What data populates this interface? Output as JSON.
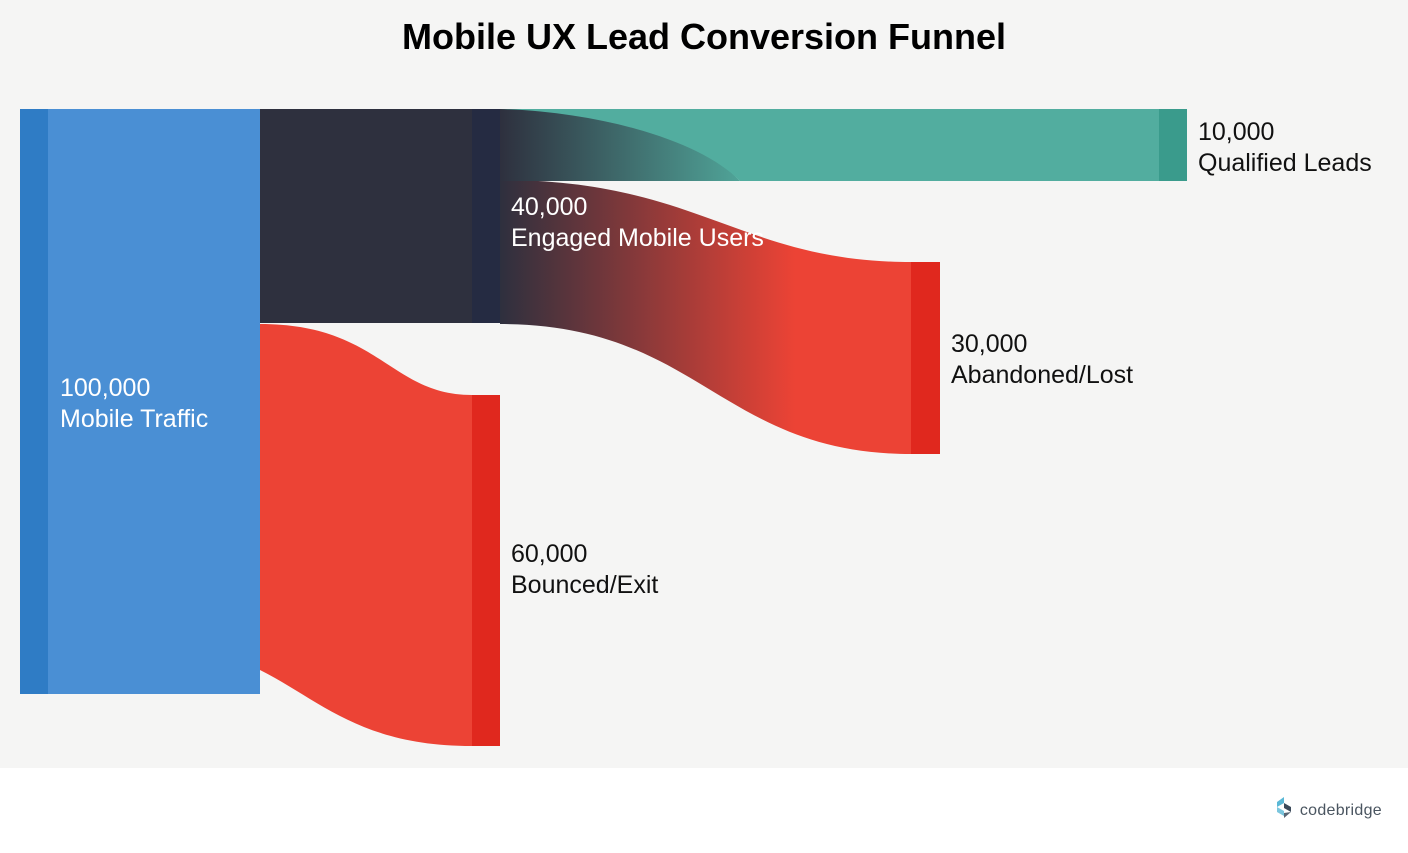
{
  "chart_data": {
    "type": "sankey",
    "title": "Mobile UX Lead Conversion Funnel",
    "nodes": [
      {
        "id": "mobile_traffic",
        "value": 100000,
        "value_label": "100,000",
        "label": "Mobile Traffic",
        "color": "#4a8fd4",
        "bar_color": "#2f7cc5"
      },
      {
        "id": "engaged",
        "value": 40000,
        "value_label": "40,000",
        "label": "Engaged Mobile Users",
        "color": "#2e303e",
        "bar_color": "#252b42"
      },
      {
        "id": "bounced",
        "value": 60000,
        "value_label": "60,000",
        "label": "Bounced/Exit",
        "color": "#ec4335",
        "bar_color": "#e0281e"
      },
      {
        "id": "qualified",
        "value": 10000,
        "value_label": "10,000",
        "label": "Qualified Leads",
        "color": "#52ad9f",
        "bar_color": "#3a9b8c"
      },
      {
        "id": "abandoned",
        "value": 30000,
        "value_label": "30,000",
        "label": "Abandoned/Lost",
        "color": "#ec4335",
        "bar_color": "#e0281e"
      }
    ],
    "links": [
      {
        "source": "mobile_traffic",
        "target": "engaged",
        "value": 40000
      },
      {
        "source": "mobile_traffic",
        "target": "bounced",
        "value": 60000
      },
      {
        "source": "engaged",
        "target": "qualified",
        "value": 10000
      },
      {
        "source": "engaged",
        "target": "abandoned",
        "value": 30000
      }
    ]
  },
  "footer": {
    "brand": "codebridge",
    "logo_icon": "codebridge-logo-icon",
    "logo_colors": [
      "#5ab8d6",
      "#3b4a5a"
    ]
  }
}
